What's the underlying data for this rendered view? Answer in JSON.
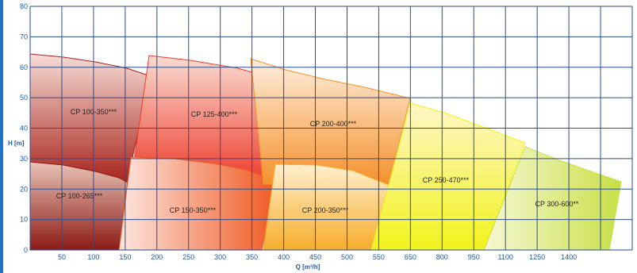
{
  "chart_data": {
    "type": "area",
    "title": "",
    "xlabel": "Q [m³/h]",
    "ylabel": "H [m]",
    "ylim": [
      0,
      80
    ],
    "yticks": [
      0,
      10,
      20,
      30,
      40,
      50,
      60,
      70,
      80
    ],
    "xticks": [
      "50",
      "100",
      "150",
      "200",
      "250",
      "300",
      "350",
      "400",
      "450",
      "500",
      "550",
      "650",
      "800",
      "950",
      "1100",
      "1250",
      "1400"
    ],
    "grid": true,
    "regions": [
      {
        "name": "CP 100-350***",
        "color_start": "#f6ddd6",
        "color_end": "#a8231c"
      },
      {
        "name": "CP 100-265***",
        "color_start": "#e9c3b7",
        "color_end": "#8c1b15"
      },
      {
        "name": "CP 125-400***",
        "color_start": "#f8ddd2",
        "color_end": "#ee3b2b"
      },
      {
        "name": "CP 150-350***",
        "color_start": "#fde6df",
        "color_end": "#ef5a23"
      },
      {
        "name": "CP 200-400***",
        "color_start": "#fdeede",
        "color_end": "#f4912b"
      },
      {
        "name": "CP 200-350***",
        "color_start": "#fff0cf",
        "color_end": "#f6ad2b"
      },
      {
        "name": "CP 250-470***",
        "color_start": "#fff6c8",
        "color_end": "#f2f31c"
      },
      {
        "name": "CP 300-600**",
        "color_start": "#f7f8d4",
        "color_end": "#c9df46"
      }
    ]
  }
}
